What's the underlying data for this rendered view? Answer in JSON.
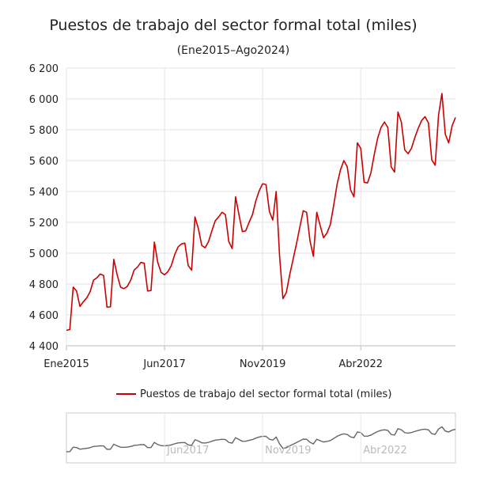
{
  "chart_data": {
    "type": "line",
    "title": "Puestos de trabajo del sector formal total (miles)",
    "subtitle": "(Ene2015–Ago2024)",
    "xlabel": "",
    "ylabel": "",
    "ylim": [
      4400,
      6200
    ],
    "yticks": [
      "6 200",
      "6 000",
      "5 800",
      "5 600",
      "5 400",
      "5 200",
      "5 000",
      "4 800",
      "4 600",
      "4 400"
    ],
    "xticks": [
      "Ene2015",
      "Jun2017",
      "Nov2019",
      "Abr2022"
    ],
    "navigator_ticks": [
      "Jun2017",
      "Nov2019",
      "Abr2022"
    ],
    "grid": true,
    "legend_position": "bottom",
    "series": [
      {
        "name": "Puestos de trabajo del sector formal total (miles)",
        "color": "#cc0000",
        "start": "Ene2015",
        "frequency": "monthly",
        "values": [
          4500,
          4505,
          4780,
          4755,
          4655,
          4685,
          4710,
          4750,
          4825,
          4840,
          4865,
          4855,
          4650,
          4652,
          4960,
          4860,
          4780,
          4770,
          4785,
          4825,
          4890,
          4910,
          4940,
          4935,
          4755,
          4758,
          5072,
          4940,
          4875,
          4860,
          4880,
          4920,
          4990,
          5040,
          5060,
          5065,
          4920,
          4890,
          5235,
          5160,
          5050,
          5035,
          5075,
          5145,
          5210,
          5235,
          5265,
          5250,
          5075,
          5030,
          5365,
          5250,
          5140,
          5145,
          5200,
          5250,
          5340,
          5405,
          5450,
          5445,
          5270,
          5215,
          5400,
          4985,
          4705,
          4745,
          4860,
          4960,
          5060,
          5170,
          5275,
          5265,
          5080,
          4980,
          5265,
          5180,
          5100,
          5130,
          5185,
          5310,
          5445,
          5540,
          5600,
          5560,
          5410,
          5365,
          5715,
          5680,
          5460,
          5455,
          5520,
          5640,
          5745,
          5815,
          5850,
          5815,
          5560,
          5525,
          5915,
          5850,
          5670,
          5645,
          5680,
          5750,
          5810,
          5860,
          5885,
          5845,
          5605,
          5570,
          5895,
          6035,
          5770,
          5715,
          5825,
          5880
        ]
      }
    ]
  }
}
